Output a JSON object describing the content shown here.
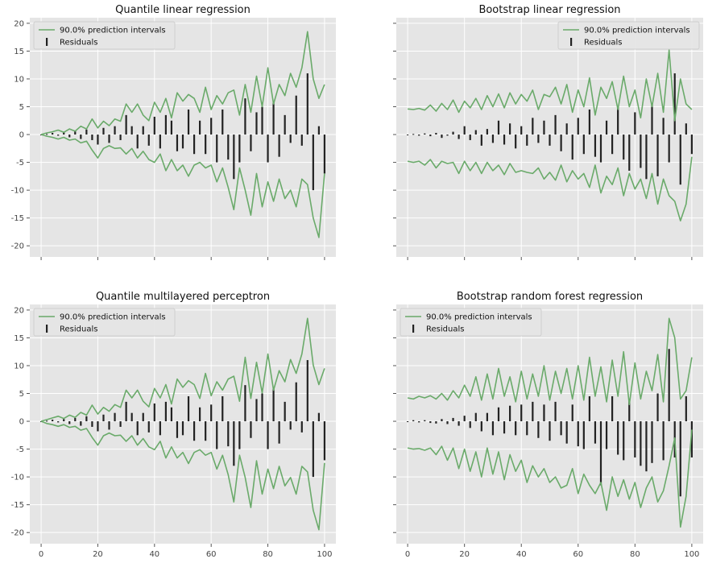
{
  "chart_data": [
    {
      "type": "line",
      "title": "Quantile linear regression",
      "xlabel": "",
      "ylabel": "",
      "xlim": [
        -4,
        104
      ],
      "ylim": [
        -22,
        21
      ],
      "xticks": [
        0,
        20,
        40,
        60,
        80,
        100
      ],
      "yticks": [
        20,
        15,
        10,
        5,
        0,
        -5,
        -10,
        -15,
        -20
      ],
      "show_x_tick_labels": false,
      "show_y_tick_labels": true,
      "grid": true,
      "legend_position": "top-left",
      "legend": [
        "90.0% prediction intervals",
        "Residuals"
      ],
      "x": [
        0,
        2,
        4,
        6,
        8,
        10,
        12,
        14,
        16,
        18,
        20,
        22,
        24,
        26,
        28,
        30,
        32,
        34,
        36,
        38,
        40,
        42,
        44,
        46,
        48,
        50,
        52,
        54,
        56,
        58,
        60,
        62,
        64,
        66,
        68,
        70,
        72,
        74,
        76,
        78,
        80,
        82,
        84,
        86,
        88,
        90,
        92,
        94,
        96,
        98,
        100
      ],
      "series": [
        {
          "name": "90.0% prediction intervals",
          "kind": "upper",
          "values": [
            0,
            0.3,
            0.5,
            0.8,
            0.4,
            1.0,
            0.6,
            1.5,
            1.0,
            2.8,
            1.2,
            2.4,
            1.6,
            2.8,
            2.4,
            5.5,
            4.0,
            5.5,
            3.5,
            2.5,
            5.8,
            4.0,
            6.5,
            3.0,
            7.5,
            6.0,
            7.2,
            6.5,
            4.0,
            8.5,
            4.5,
            7.0,
            5.5,
            7.5,
            8.0,
            3.5,
            9.0,
            4.0,
            10.5,
            5.0,
            12.0,
            5.5,
            9.0,
            7.0,
            11.0,
            8.5,
            12.0,
            18.5,
            10.0,
            6.5,
            9.0
          ]
        },
        {
          "name": "90.0% prediction intervals",
          "kind": "lower",
          "values": [
            0,
            -0.3,
            -0.5,
            -0.8,
            -0.5,
            -1.0,
            -0.8,
            -1.5,
            -1.2,
            -2.8,
            -4.2,
            -2.5,
            -2.0,
            -2.5,
            -2.4,
            -3.5,
            -2.5,
            -4.2,
            -3.0,
            -4.5,
            -5.0,
            -3.5,
            -6.5,
            -4.5,
            -6.5,
            -5.5,
            -7.5,
            -5.5,
            -5.0,
            -6.0,
            -5.5,
            -8.5,
            -6.0,
            -9.5,
            -13.5,
            -6.0,
            -10.0,
            -14.5,
            -7.0,
            -13.0,
            -8.5,
            -12.0,
            -8.0,
            -11.5,
            -10.0,
            -13.0,
            -8.0,
            -9.0,
            -15.0,
            -18.5,
            -7.0
          ]
        },
        {
          "name": "Residuals",
          "kind": "residuals",
          "values": [
            0,
            0.1,
            0.3,
            -0.2,
            0.4,
            -0.5,
            0.6,
            -0.8,
            0.9,
            -1.0,
            -1.8,
            1.2,
            -1.5,
            1.5,
            -1.0,
            3.5,
            1.5,
            -2.5,
            1.5,
            -2.0,
            3.2,
            -2.5,
            3.5,
            2.5,
            -3.0,
            -2.5,
            4.5,
            -3.5,
            2.5,
            -3.5,
            3.0,
            -5.0,
            4.5,
            -4.5,
            -8.0,
            -5.0,
            6.5,
            -3.0,
            4.0,
            5.0,
            -5.0,
            6.0,
            -4.0,
            3.5,
            -1.5,
            7.0,
            -2.0,
            11.0,
            -10.0,
            1.5,
            -7.0
          ]
        }
      ]
    },
    {
      "type": "line",
      "title": "Bootstrap linear regression",
      "xlabel": "",
      "ylabel": "",
      "xlim": [
        -4,
        104
      ],
      "ylim": [
        -22,
        21
      ],
      "xticks": [
        0,
        20,
        40,
        60,
        80,
        100
      ],
      "yticks": [
        20,
        15,
        10,
        5,
        0,
        -5,
        -10,
        -15,
        -20
      ],
      "show_x_tick_labels": false,
      "show_y_tick_labels": false,
      "grid": true,
      "legend_position": "top-right",
      "legend": [
        "90.0% prediction intervals",
        "Residuals"
      ],
      "x": [
        0,
        2,
        4,
        6,
        8,
        10,
        12,
        14,
        16,
        18,
        20,
        22,
        24,
        26,
        28,
        30,
        32,
        34,
        36,
        38,
        40,
        42,
        44,
        46,
        48,
        50,
        52,
        54,
        56,
        58,
        60,
        62,
        64,
        66,
        68,
        70,
        72,
        74,
        76,
        78,
        80,
        82,
        84,
        86,
        88,
        90,
        92,
        94,
        96,
        98,
        100
      ],
      "series": [
        {
          "name": "90.0% prediction intervals",
          "kind": "upper",
          "values": [
            4.6,
            4.5,
            4.7,
            4.4,
            5.3,
            4.2,
            5.6,
            4.5,
            6.2,
            4.0,
            6.0,
            4.8,
            6.5,
            4.5,
            7.0,
            5.0,
            7.3,
            4.8,
            7.5,
            5.5,
            7.2,
            6.0,
            8.0,
            4.5,
            7.2,
            6.8,
            8.5,
            5.5,
            9.0,
            4.0,
            8.0,
            5.0,
            10.2,
            3.5,
            8.5,
            6.5,
            9.5,
            4.5,
            10.5,
            5.0,
            8.0,
            3.0,
            10.0,
            5.0,
            11.0,
            4.0,
            15.2,
            2.5,
            10.0,
            5.5,
            4.5
          ]
        },
        {
          "name": "90.0% prediction intervals",
          "kind": "lower",
          "values": [
            -4.8,
            -5.0,
            -4.8,
            -5.5,
            -4.5,
            -6.0,
            -4.8,
            -5.2,
            -5.0,
            -7.0,
            -4.8,
            -6.5,
            -5.0,
            -7.0,
            -5.0,
            -6.5,
            -5.5,
            -7.2,
            -5.2,
            -6.8,
            -6.5,
            -6.8,
            -7.0,
            -6.0,
            -8.0,
            -6.8,
            -8.2,
            -5.5,
            -8.5,
            -6.5,
            -8.0,
            -7.0,
            -9.5,
            -5.5,
            -10.5,
            -7.5,
            -9.0,
            -6.0,
            -11.0,
            -7.0,
            -9.8,
            -8.0,
            -11.5,
            -7.0,
            -12.5,
            -8.0,
            -11.0,
            -12.0,
            -15.5,
            -12.5,
            -4.0
          ]
        },
        {
          "name": "Residuals",
          "kind": "residuals",
          "values": [
            0,
            0.1,
            -0.2,
            0.2,
            -0.3,
            0.3,
            -0.6,
            -0.2,
            0.5,
            -0.8,
            1.5,
            -1.0,
            0.8,
            -2.0,
            1.0,
            -1.5,
            2.5,
            -1.8,
            2.0,
            -2.5,
            1.5,
            -2.0,
            3.0,
            -1.5,
            2.5,
            -2.0,
            3.5,
            -3.0,
            2.0,
            -4.5,
            3.0,
            -3.5,
            4.5,
            -4.0,
            -5.0,
            2.5,
            -3.5,
            5.0,
            -4.5,
            -6.5,
            4.0,
            -6.0,
            -8.0,
            5.5,
            -7.5,
            3.0,
            -5.0,
            11.0,
            -9.0,
            2.0,
            -3.5
          ]
        }
      ]
    },
    {
      "type": "line",
      "title": "Quantile multilayered perceptron",
      "xlabel": "",
      "ylabel": "",
      "xlim": [
        -4,
        104
      ],
      "ylim": [
        -22,
        21
      ],
      "xticks": [
        0,
        20,
        40,
        60,
        80,
        100
      ],
      "yticks": [
        20,
        15,
        10,
        5,
        0,
        -5,
        -10,
        -15,
        -20
      ],
      "xtick_labels": [
        "0",
        "20",
        "40",
        "60",
        "80",
        "100"
      ],
      "show_x_tick_labels": true,
      "show_y_tick_labels": true,
      "grid": true,
      "legend_position": "top-left",
      "legend": [
        "90.0% prediction intervals",
        "Residuals"
      ],
      "x": [
        0,
        2,
        4,
        6,
        8,
        10,
        12,
        14,
        16,
        18,
        20,
        22,
        24,
        26,
        28,
        30,
        32,
        34,
        36,
        38,
        40,
        42,
        44,
        46,
        48,
        50,
        52,
        54,
        56,
        58,
        60,
        62,
        64,
        66,
        68,
        70,
        72,
        74,
        76,
        78,
        80,
        82,
        84,
        86,
        88,
        90,
        92,
        94,
        96,
        98,
        100
      ],
      "series": [
        {
          "name": "90.0% prediction intervals",
          "kind": "upper",
          "values": [
            0,
            0.3,
            0.6,
            0.9,
            0.5,
            1.1,
            0.7,
            1.6,
            1.1,
            2.9,
            1.3,
            2.5,
            1.8,
            3.0,
            2.5,
            5.6,
            4.2,
            5.6,
            3.6,
            2.6,
            5.9,
            4.2,
            6.6,
            3.1,
            7.6,
            6.1,
            7.3,
            6.6,
            4.1,
            8.6,
            4.6,
            7.1,
            5.6,
            7.6,
            8.1,
            3.6,
            11.5,
            4.1,
            10.6,
            5.1,
            12.1,
            5.6,
            9.1,
            7.1,
            11.1,
            8.6,
            12.1,
            18.5,
            10.1,
            6.6,
            9.5
          ]
        },
        {
          "name": "90.0% prediction intervals",
          "kind": "lower",
          "values": [
            0,
            -0.4,
            -0.6,
            -0.9,
            -0.6,
            -1.1,
            -0.9,
            -1.6,
            -1.3,
            -2.9,
            -4.3,
            -2.6,
            -2.1,
            -2.6,
            -2.5,
            -3.6,
            -2.6,
            -4.3,
            -3.1,
            -4.6,
            -5.1,
            -3.6,
            -6.6,
            -4.6,
            -6.6,
            -5.6,
            -7.6,
            -5.6,
            -5.1,
            -6.1,
            -5.6,
            -8.6,
            -6.1,
            -9.6,
            -14.5,
            -6.1,
            -10.1,
            -15.5,
            -7.1,
            -13.1,
            -8.6,
            -12.1,
            -8.1,
            -11.6,
            -10.1,
            -13.1,
            -8.1,
            -9.1,
            -16.0,
            -19.5,
            -7.5
          ]
        },
        {
          "name": "Residuals",
          "kind": "residuals",
          "values": [
            0,
            0.1,
            0.3,
            -0.2,
            0.4,
            -0.5,
            0.6,
            -0.8,
            0.9,
            -1.0,
            -1.8,
            1.2,
            -1.5,
            1.5,
            -1.0,
            3.5,
            1.5,
            -2.5,
            1.5,
            -2.0,
            3.2,
            -2.5,
            3.5,
            2.5,
            -3.0,
            -2.5,
            4.5,
            -3.5,
            2.5,
            -3.5,
            3.0,
            -5.0,
            4.5,
            -4.5,
            -8.0,
            -5.0,
            6.5,
            -3.0,
            4.0,
            5.0,
            -5.0,
            6.0,
            -4.0,
            3.5,
            -1.5,
            7.0,
            -2.0,
            11.0,
            -10.0,
            1.5,
            -7.0
          ]
        }
      ]
    },
    {
      "type": "line",
      "title": "Bootstrap random forest regression",
      "xlabel": "",
      "ylabel": "",
      "xlim": [
        -4,
        104
      ],
      "ylim": [
        -22,
        21
      ],
      "xticks": [
        0,
        20,
        40,
        60,
        80,
        100
      ],
      "yticks": [
        20,
        15,
        10,
        5,
        0,
        -5,
        -10,
        -15,
        -20
      ],
      "xtick_labels": [
        "0",
        "20",
        "40",
        "60",
        "80",
        "100"
      ],
      "show_x_tick_labels": true,
      "show_y_tick_labels": false,
      "grid": true,
      "legend_position": "top-left",
      "legend": [
        "90.0% prediction intervals",
        "Residuals"
      ],
      "x": [
        0,
        2,
        4,
        6,
        8,
        10,
        12,
        14,
        16,
        18,
        20,
        22,
        24,
        26,
        28,
        30,
        32,
        34,
        36,
        38,
        40,
        42,
        44,
        46,
        48,
        50,
        52,
        54,
        56,
        58,
        60,
        62,
        64,
        66,
        68,
        70,
        72,
        74,
        76,
        78,
        80,
        82,
        84,
        86,
        88,
        90,
        92,
        94,
        96,
        98,
        100
      ],
      "series": [
        {
          "name": "90.0% prediction intervals",
          "kind": "upper",
          "values": [
            4.2,
            4.0,
            4.5,
            4.2,
            4.6,
            4.0,
            5.0,
            3.8,
            5.5,
            4.2,
            6.5,
            4.5,
            8.0,
            3.8,
            8.5,
            4.0,
            9.5,
            4.5,
            8.0,
            3.5,
            9.0,
            4.0,
            8.5,
            4.5,
            10.0,
            3.8,
            9.0,
            5.0,
            9.5,
            4.0,
            10.0,
            3.8,
            11.5,
            4.5,
            9.8,
            3.5,
            11.0,
            4.5,
            12.5,
            3.0,
            10.5,
            4.0,
            9.0,
            5.5,
            12.0,
            3.5,
            18.5,
            15.0,
            4.0,
            5.5,
            11.5
          ]
        },
        {
          "name": "90.0% prediction intervals",
          "kind": "lower",
          "values": [
            -4.8,
            -5.0,
            -4.9,
            -5.2,
            -4.8,
            -6.0,
            -4.5,
            -7.0,
            -4.8,
            -8.5,
            -5.0,
            -9.0,
            -5.5,
            -10.0,
            -4.8,
            -9.5,
            -5.5,
            -10.5,
            -6.0,
            -9.0,
            -7.0,
            -11.0,
            -8.0,
            -10.0,
            -8.5,
            -11.0,
            -10.0,
            -12.0,
            -11.5,
            -8.5,
            -13.0,
            -9.5,
            -11.5,
            -13.0,
            -11.0,
            -16.0,
            -10.0,
            -13.5,
            -10.5,
            -14.0,
            -11.0,
            -15.5,
            -12.0,
            -10.0,
            -14.5,
            -12.5,
            -8.0,
            -3.0,
            -19.0,
            -13.5,
            -1.5
          ]
        },
        {
          "name": "Residuals",
          "kind": "residuals",
          "values": [
            0,
            0.2,
            -0.2,
            0.2,
            -0.3,
            -0.4,
            0.4,
            -0.5,
            0.6,
            -0.8,
            1.0,
            -1.2,
            1.5,
            -1.8,
            1.5,
            -2.5,
            2.5,
            -2.2,
            2.8,
            -2.5,
            3.0,
            -2.5,
            3.5,
            -3.0,
            3.0,
            -3.5,
            3.5,
            -2.5,
            -4.0,
            3.0,
            -4.5,
            -5.0,
            4.5,
            -4.0,
            -11.5,
            -5.0,
            4.5,
            -6.0,
            -7.0,
            4.0,
            -6.5,
            -8.0,
            -9.0,
            -7.5,
            5.0,
            -7.0,
            13.0,
            -6.5,
            -13.5,
            4.5,
            -6.5
          ]
        }
      ]
    }
  ],
  "colors": {
    "interval_line": "#6aaa6a",
    "residual_bar": "#222222",
    "plot_background": "#e5e5e5",
    "grid": "#ffffff",
    "axis_text": "#444444"
  }
}
